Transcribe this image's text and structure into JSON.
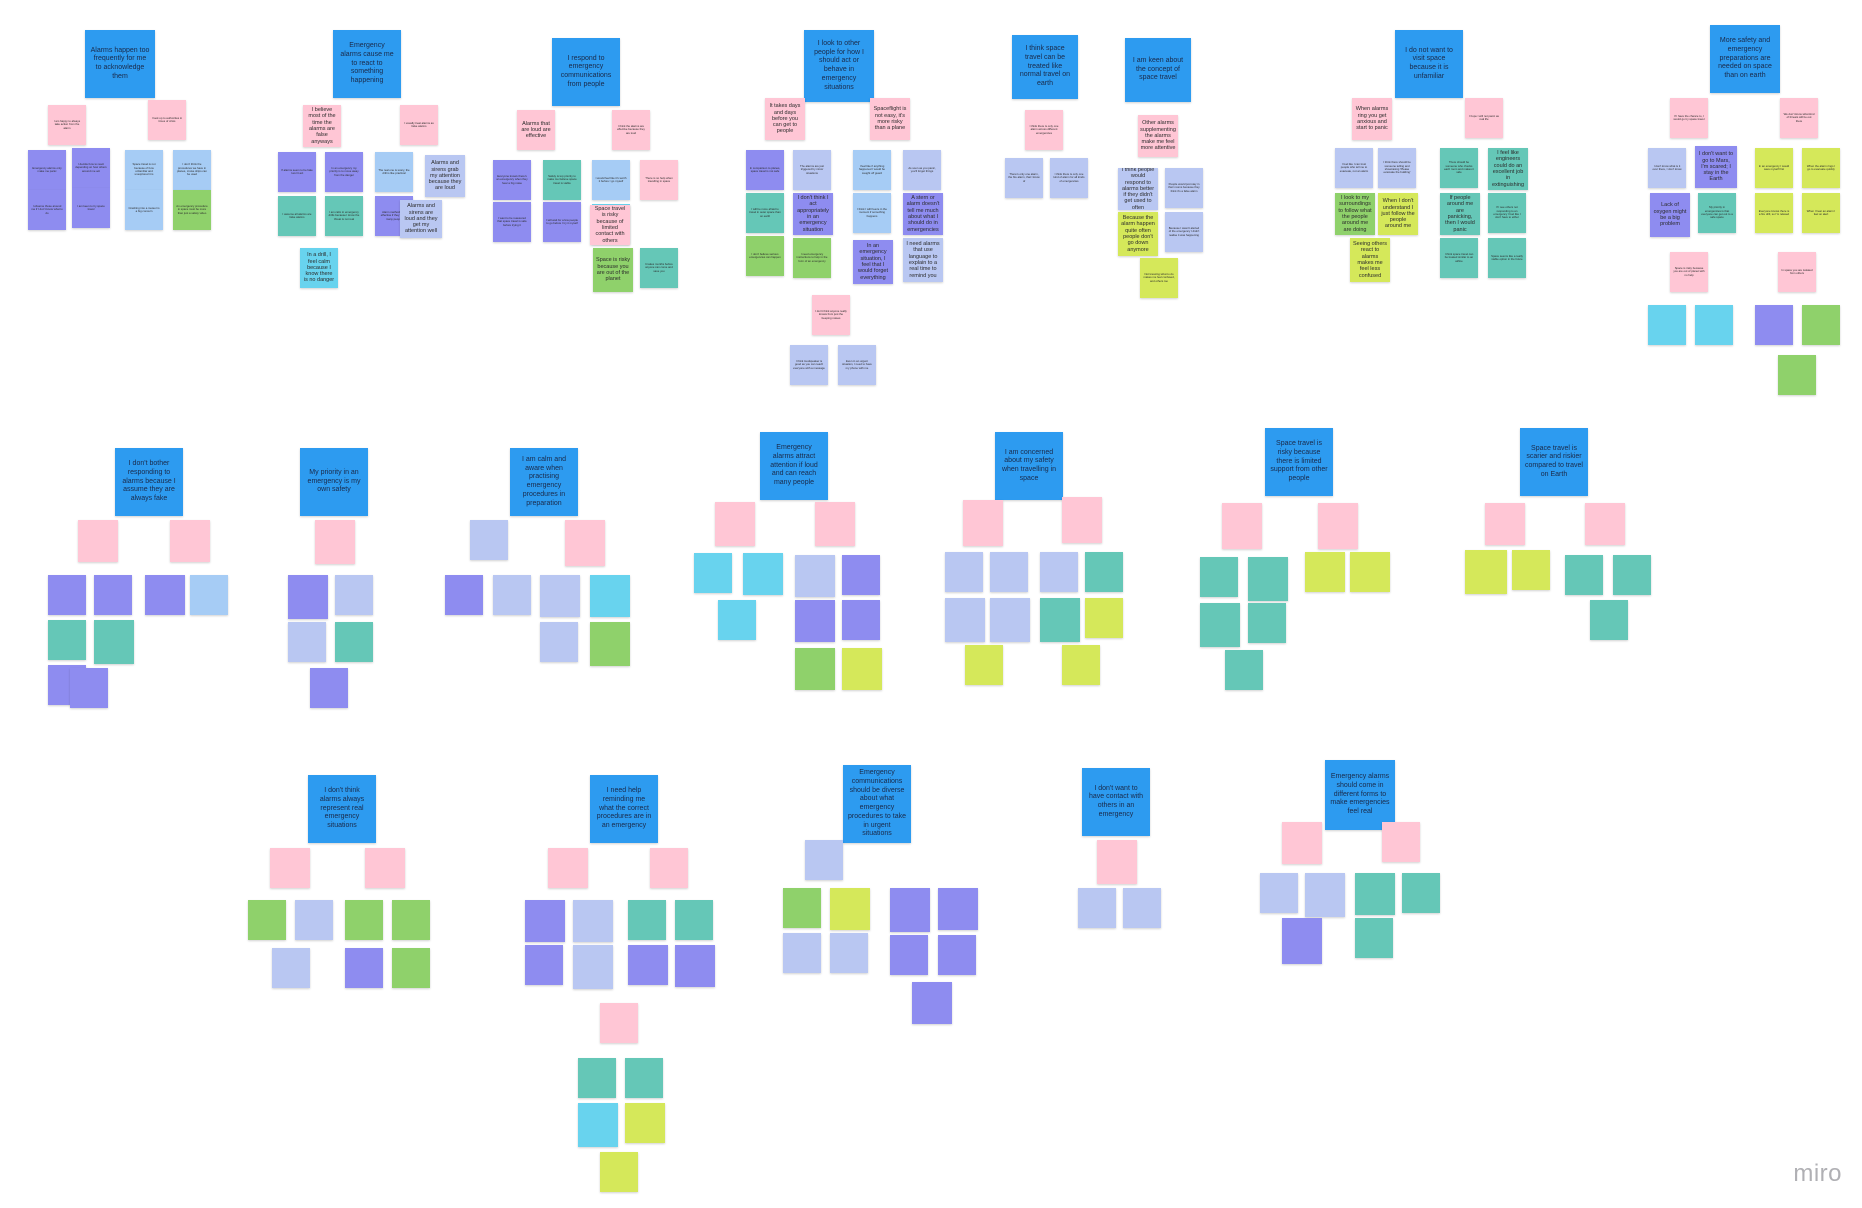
{
  "app": {
    "logo": "miro"
  },
  "headers": [
    "Alarms happen too frequently for me to acknowledge them",
    "Emergency alarms cause me to react to something happening",
    "I respond to emergency communications from people",
    "I look to other people for how I should act or behave in emergency situations",
    "I think space travel can be treated like normal travel on earth",
    "I am keen about the concept of space travel",
    "I do not want to visit space because it is unfamiliar",
    "More safety and emergency preparations are needed on space than on earth",
    "I don't bother responding to alarms because I assume they are always fake",
    "My priority in an emergency is my own safety",
    "I am calm and aware when practising emergency procedures in preparation",
    "Emergency alarms attract attention if loud and can reach many people",
    "I am concerned about my safety when travelling in space",
    "Space travel is risky because there is limited support from other people",
    "Space travel is scarier and riskier compared to travel on Earth",
    "I don't think alarms always represent real emergency situations",
    "I need help reminding me what the correct procedures are in an emergency",
    "Emergency communications should be diverse about what emergency procedures to take in urgent situations",
    "I don't want to have contact with others in an emergency",
    "Emergency alarms should come in different forms to make emergencies feel real"
  ],
  "notes": [
    "I am happy to always take action from the alarm",
    "I look up to authorities in times of crisis",
    "Emergency alarms only make me panic",
    "I observe those around me if I don't know what to do",
    "I decide how to react depending on how others around me act",
    "I am keen to try space travel",
    "Space travel is not because of how unfamiliar and unexplored it is",
    "Crashing into a meteor is a big concern",
    "I don't think the procedures we have in planes, cruise ships can be used",
    "An emergency procedure in space must be more than just a safety video",
    "I believe most of the time the alarms are false anyways",
    "I usually treat alarms as false alarms",
    "If alarms seem to be fake I won't act",
    "I assume all alarms are false alarms",
    "In an emergency my priority is to move away from the danger",
    "I am calm in emergency drills because I know the threat is not real",
    "In a drill, I feel calm because I know there is no danger",
    "The real one is scary, the drill is like practical",
    "Alarm methods are effective if they reach many people",
    "Alarms and sirens grab my attention because they are loud",
    "Alarms and sirens are loud and they get my attention well",
    "Alarms that are loud are effective",
    "I think the alarms are effective because they are loud",
    "Everyone knows there's an emergency when they hear a big noise",
    "I want to be reassured that space travel is safe before trying it",
    "Safety is top priority to make me believe space travel is viable",
    "I will wait for a few people to go before I try it myself",
    "I would feel like it's worth it before I go myself",
    "Being able to live in space is something I would do",
    "Space travel is risky because of limited contact with others",
    "Space is risky because you are out of the planet",
    "There is no help when travelling in space",
    "It takes months before anyone can come and save you",
    "It takes days and days before you can get to people",
    "Spaceflight is not easy, it's more risky than a plane",
    "In comparison to planes, space travel is not safe",
    "I will be more afraid to travel in outer space than on earth",
    "I don't believe serious emergencies can happen",
    "The alarms are just triggered by minor situations",
    "I don't think I act appropriately in an emergency situation",
    "I need emergency instructions to help in the form of an emergency",
    "I feel like if anything happened I would be caught off guard",
    "I think I will freeze in the moment if something happens",
    "In an emergency situation, I feel that I would forget everything",
    "As soon as you panic, you'll forget things",
    "A stern or alarm doesn't tell me much about what I should do in emergencies",
    "I need alarms that use language to explain to a real time to remind you",
    "I don't think anyone really knows from just the beeping noises",
    "I think loudspeaker is good as you can reach everyone with a message",
    "Even in an urgent situation, I need to have my phone with me",
    "I think there is only one alarm across different emergencies",
    "There's only one alarm, the fire alarm, that I know of",
    "I think there is only one kind of alarm for all kinds of emergencies",
    "Other alarms supplementing the alarms make me feel more attentive",
    "I think people would respond to alarms better if they didn't get used to often",
    "People would just stay in their rooms because they think it's a false alarm",
    "Because the alarm happen quite often people don't go down anymore",
    "Because I wasn't alerted of the emergency I didn't realise it was happening",
    "Not knowing what to do makes me feel confused, and others too",
    "When alarms ring you get anxious and start to panic",
    "I hope I will not panic as real life",
    "I feel like I can trust people who tell me to evacuate, not an alarm",
    "I think there should be someone telling and showcasing 'Please evacuate the building'",
    "There should be someone who checks each room and makes it safe",
    "I feel like engineers could do an excellent job in extinguishing",
    "I look to my surroundings to follow what the people around me are doing",
    "When I don't understand I just follow the people around me",
    "If people around me are panicking, then I would panic",
    "If I see others not responding to an emergency I feel like I don't have to either",
    "Seeing others react to alarms makes me feel less confused",
    "I think space travel can be treated similar to an airline",
    "Space seems like a really viable option in the future",
    "If I have the chance to, I would go try space travel",
    "We don't know what kind of threats will be out there",
    "I don't know what is it over there, I don't know",
    "I don't want to go to Mars, I'm scared; I stay in the Earth",
    "Lack of oxygen might be a big problem",
    "My priority in emergencies is that everyone can get out to a safe space",
    "In an emergency I would save myself first",
    "When the alarm rings I go to evacuate quickly",
    "Everyone knows there is a fire drill, so I'm relaxed",
    "When I hear an alarm I feel on alert",
    "Space is risky because you are out of planet with no help",
    "In space you are isolated from others"
  ]
}
